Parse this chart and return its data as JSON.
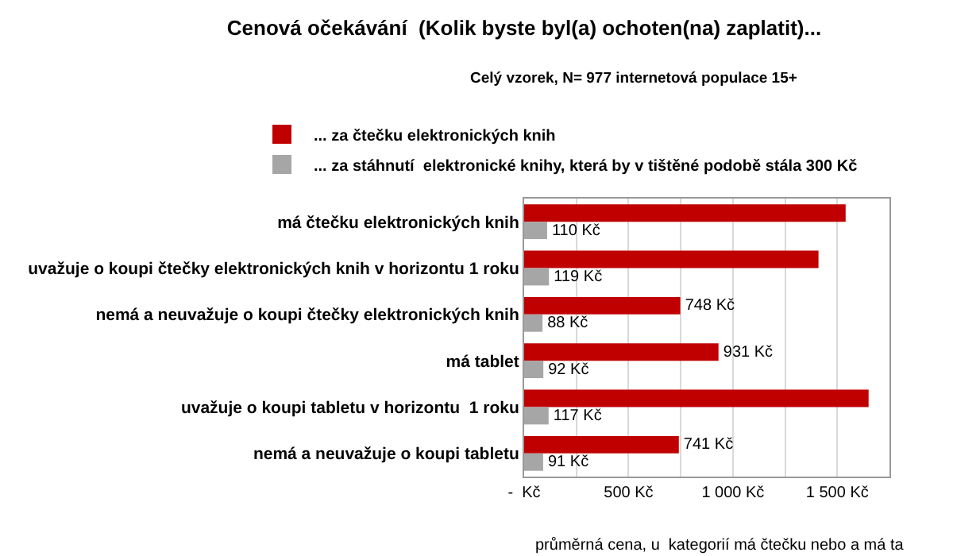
{
  "chart_data": {
    "type": "bar",
    "orientation": "horizontal",
    "title": "Cenová očekávání  (Kolik byste byl(a) ochoten(na) zaplatit)...",
    "subtitle": "Celý vzorek, N= 977 internetová populace 15+",
    "categories": [
      "má čtečku elektronických knih",
      "uvažuje o koupi čtečky elektronických knih v horizontu 1 roku",
      "nemá a neuvažuje o koupi čtečky elektronických knih",
      "má tablet",
      "uvažuje o koupi tabletu v horizontu  1 roku",
      "nemá a neuvažuje o koupi tabletu"
    ],
    "series": [
      {
        "name": "... za čtečku elektronických knih",
        "color": "#c00000",
        "values": [
          1540,
          1410,
          748,
          931,
          1650,
          741
        ],
        "value_labels": [
          null,
          null,
          "748 Kč",
          "931 Kč",
          null,
          "741 Kč"
        ]
      },
      {
        "name": "... za stáhnutí  elektronické knihy, která by v tištěné podobě stála 300 Kč",
        "color": "#a6a6a6",
        "values": [
          110,
          119,
          88,
          92,
          117,
          91
        ],
        "value_labels": [
          "110 Kč",
          "119 Kč",
          "88 Kč",
          "92 Kč",
          "117 Kč",
          "91 Kč"
        ]
      }
    ],
    "xlim": [
      0,
      1750
    ],
    "xticks": [
      {
        "value": 0,
        "label": "-  Kč"
      },
      {
        "value": 250,
        "label": null
      },
      {
        "value": 500,
        "label": "500 Kč"
      },
      {
        "value": 750,
        "label": null
      },
      {
        "value": 1000,
        "label": "1 000 Kč"
      },
      {
        "value": 1250,
        "label": null
      },
      {
        "value": 1500,
        "label": "1 500 Kč"
      }
    ],
    "grid": "x",
    "legend": "top left",
    "annotations": [
      "průměrná cena, u  kategorií má čtečku nebo a má ta"
    ]
  }
}
